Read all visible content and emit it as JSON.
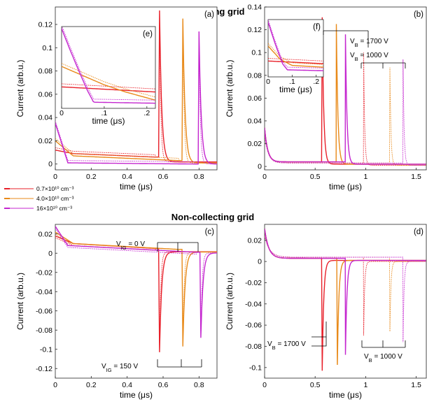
{
  "titles": {
    "top": "Collecting grid",
    "bottom": "Non-collecting grid"
  },
  "colors": {
    "n07": "#e8202a",
    "n40": "#e88a1a",
    "n16": "#c426cf"
  },
  "legend": [
    {
      "text": "0.7×10¹⁰ cm⁻³",
      "color_key": "n07"
    },
    {
      "text": "4.0×10¹⁰ cm⁻³",
      "color_key": "n40"
    },
    {
      "text": "16×10¹⁰ cm⁻³",
      "color_key": "n16"
    }
  ],
  "annotations": {
    "b_vb1700": "V_B = 1700 V",
    "b_vb1000": "V_B = 1000 V",
    "c_vig0": "V_IG = 0 V",
    "c_vig150": "V_IG = 150 V",
    "d_vb1700": "V_B = 1700 V",
    "d_vb1000": "V_B = 1000 V"
  },
  "chart_data": [
    {
      "panel": "a",
      "type": "line",
      "xlabel": "time (μs)",
      "ylabel": "Current (arb.u.)",
      "xlim": [
        0,
        0.9
      ],
      "ylim": [
        -0.005,
        0.135
      ],
      "xticks": [
        0,
        0.2,
        0.4,
        0.6,
        0.8
      ],
      "yticks": [
        0,
        0.02,
        0.04,
        0.06,
        0.08,
        0.1,
        0.12
      ],
      "grid": false,
      "series": [
        {
          "color_key": "n07",
          "peak_time": 0.58,
          "peak": 0.132,
          "baseline": [
            [
              0,
              0.012
            ],
            [
              0.1,
              0.009
            ],
            [
              0.55,
              0.006
            ]
          ]
        },
        {
          "color_key": "n40",
          "peak_time": 0.71,
          "peak": 0.125,
          "baseline": [
            [
              0,
              0.02
            ],
            [
              0.1,
              0.007
            ],
            [
              0.68,
              0.003
            ]
          ]
        },
        {
          "color_key": "n16",
          "peak_time": 0.8,
          "peak": 0.114,
          "baseline": [
            [
              0,
              0.035
            ],
            [
              0.07,
              0.001
            ],
            [
              0.78,
              0.0
            ]
          ]
        }
      ]
    },
    {
      "panel": "e",
      "type": "line",
      "inset_of": "a",
      "xlabel": "time (μs)",
      "xlim": [
        0,
        0.22
      ],
      "ylim": [
        0.055,
        0.135
      ],
      "xticks": [
        0,
        0.1,
        0.2
      ],
      "yticks": [],
      "series": [
        {
          "color_key": "n07",
          "points": [
            [
              0,
              0.076
            ],
            [
              0.22,
              0.071
            ]
          ]
        },
        {
          "color_key": "n40",
          "points": [
            [
              0,
              0.096
            ],
            [
              0.05,
              0.087
            ],
            [
              0.1,
              0.078
            ],
            [
              0.15,
              0.071
            ],
            [
              0.22,
              0.063
            ]
          ]
        },
        {
          "color_key": "n16",
          "points": [
            [
              0,
              0.133
            ],
            [
              0.02,
              0.112
            ],
            [
              0.04,
              0.092
            ],
            [
              0.06,
              0.073
            ],
            [
              0.075,
              0.061
            ],
            [
              0.22,
              0.06
            ]
          ]
        }
      ]
    },
    {
      "panel": "b",
      "type": "line",
      "xlabel": "time (μs)",
      "ylabel": "Current (arb.u.)",
      "xlim": [
        0,
        1.6
      ],
      "ylim": [
        -0.003,
        0.14
      ],
      "xticks": [
        0,
        0.5,
        1,
        1.5
      ],
      "yticks": [
        0,
        0.02,
        0.04,
        0.06,
        0.08,
        0.1,
        0.12,
        0.14
      ],
      "grid": false,
      "series": [
        {
          "color_key": "n07",
          "peaks": [
            [
              0.57,
              0.131
            ],
            [
              0.98,
              0.1
            ]
          ]
        },
        {
          "color_key": "n40",
          "peaks": [
            [
              0.71,
              0.125
            ],
            [
              1.24,
              0.087
            ]
          ]
        },
        {
          "color_key": "n16",
          "peaks": [
            [
              0.8,
              0.116
            ],
            [
              1.37,
              0.094
            ]
          ]
        }
      ]
    },
    {
      "panel": "f",
      "type": "line",
      "inset_of": "b",
      "xlabel": "time (μs)",
      "xlim": [
        0,
        0.23
      ],
      "ylim": [
        0.075,
        0.14
      ],
      "xticks": [
        0,
        0.1,
        0.2
      ],
      "yticks": [],
      "series": [
        {
          "color_key": "n07",
          "points": [
            [
              0,
              0.093
            ],
            [
              0.23,
              0.09
            ]
          ]
        },
        {
          "color_key": "n40",
          "points": [
            [
              0,
              0.11
            ],
            [
              0.05,
              0.095
            ],
            [
              0.1,
              0.088
            ],
            [
              0.23,
              0.086
            ]
          ]
        },
        {
          "color_key": "n16",
          "points": [
            [
              0,
              0.137
            ],
            [
              0.03,
              0.112
            ],
            [
              0.06,
              0.09
            ],
            [
              0.08,
              0.083
            ],
            [
              0.23,
              0.082
            ]
          ]
        }
      ]
    },
    {
      "panel": "c",
      "type": "line",
      "xlabel": "time (μs)",
      "ylabel": "Current (arb.u.)",
      "xlim": [
        0,
        0.9
      ],
      "ylim": [
        -0.13,
        0.03
      ],
      "xticks": [
        0,
        0.2,
        0.4,
        0.6,
        0.8
      ],
      "yticks": [
        -0.12,
        -0.1,
        -0.08,
        -0.06,
        -0.04,
        -0.02,
        0,
        0.02
      ],
      "grid": false,
      "series": [
        {
          "color_key": "n07",
          "peak_time": 0.58,
          "peak": -0.103,
          "baseline": [
            [
              0,
              0.018
            ],
            [
              0.1,
              0.01
            ],
            [
              0.55,
              0.005
            ]
          ]
        },
        {
          "color_key": "n40",
          "peak_time": 0.71,
          "peak": -0.097,
          "baseline": [
            [
              0,
              0.022
            ],
            [
              0.1,
              0.01
            ],
            [
              0.68,
              0.004
            ]
          ]
        },
        {
          "color_key": "n16",
          "peak_time": 0.81,
          "peak": -0.088,
          "baseline": [
            [
              0,
              0.028
            ],
            [
              0.07,
              0.008
            ],
            [
              0.78,
              0.001
            ]
          ]
        }
      ]
    },
    {
      "panel": "d",
      "type": "line",
      "xlabel": "time (μs)",
      "ylabel": "Current (arb.u.)",
      "xlim": [
        0,
        1.6
      ],
      "ylim": [
        -0.11,
        0.035
      ],
      "xticks": [
        0,
        0.5,
        1,
        1.5
      ],
      "yticks": [
        -0.1,
        -0.08,
        -0.06,
        -0.04,
        -0.02,
        0,
        0.02
      ],
      "grid": false,
      "series": [
        {
          "color_key": "n07",
          "peaks": [
            [
              0.57,
              -0.103
            ],
            [
              0.98,
              -0.07
            ]
          ]
        },
        {
          "color_key": "n40",
          "peaks": [
            [
              0.72,
              -0.097
            ],
            [
              1.24,
              -0.066
            ]
          ]
        },
        {
          "color_key": "n16",
          "peaks": [
            [
              0.8,
              -0.088
            ],
            [
              1.37,
              -0.076
            ]
          ]
        }
      ]
    }
  ]
}
